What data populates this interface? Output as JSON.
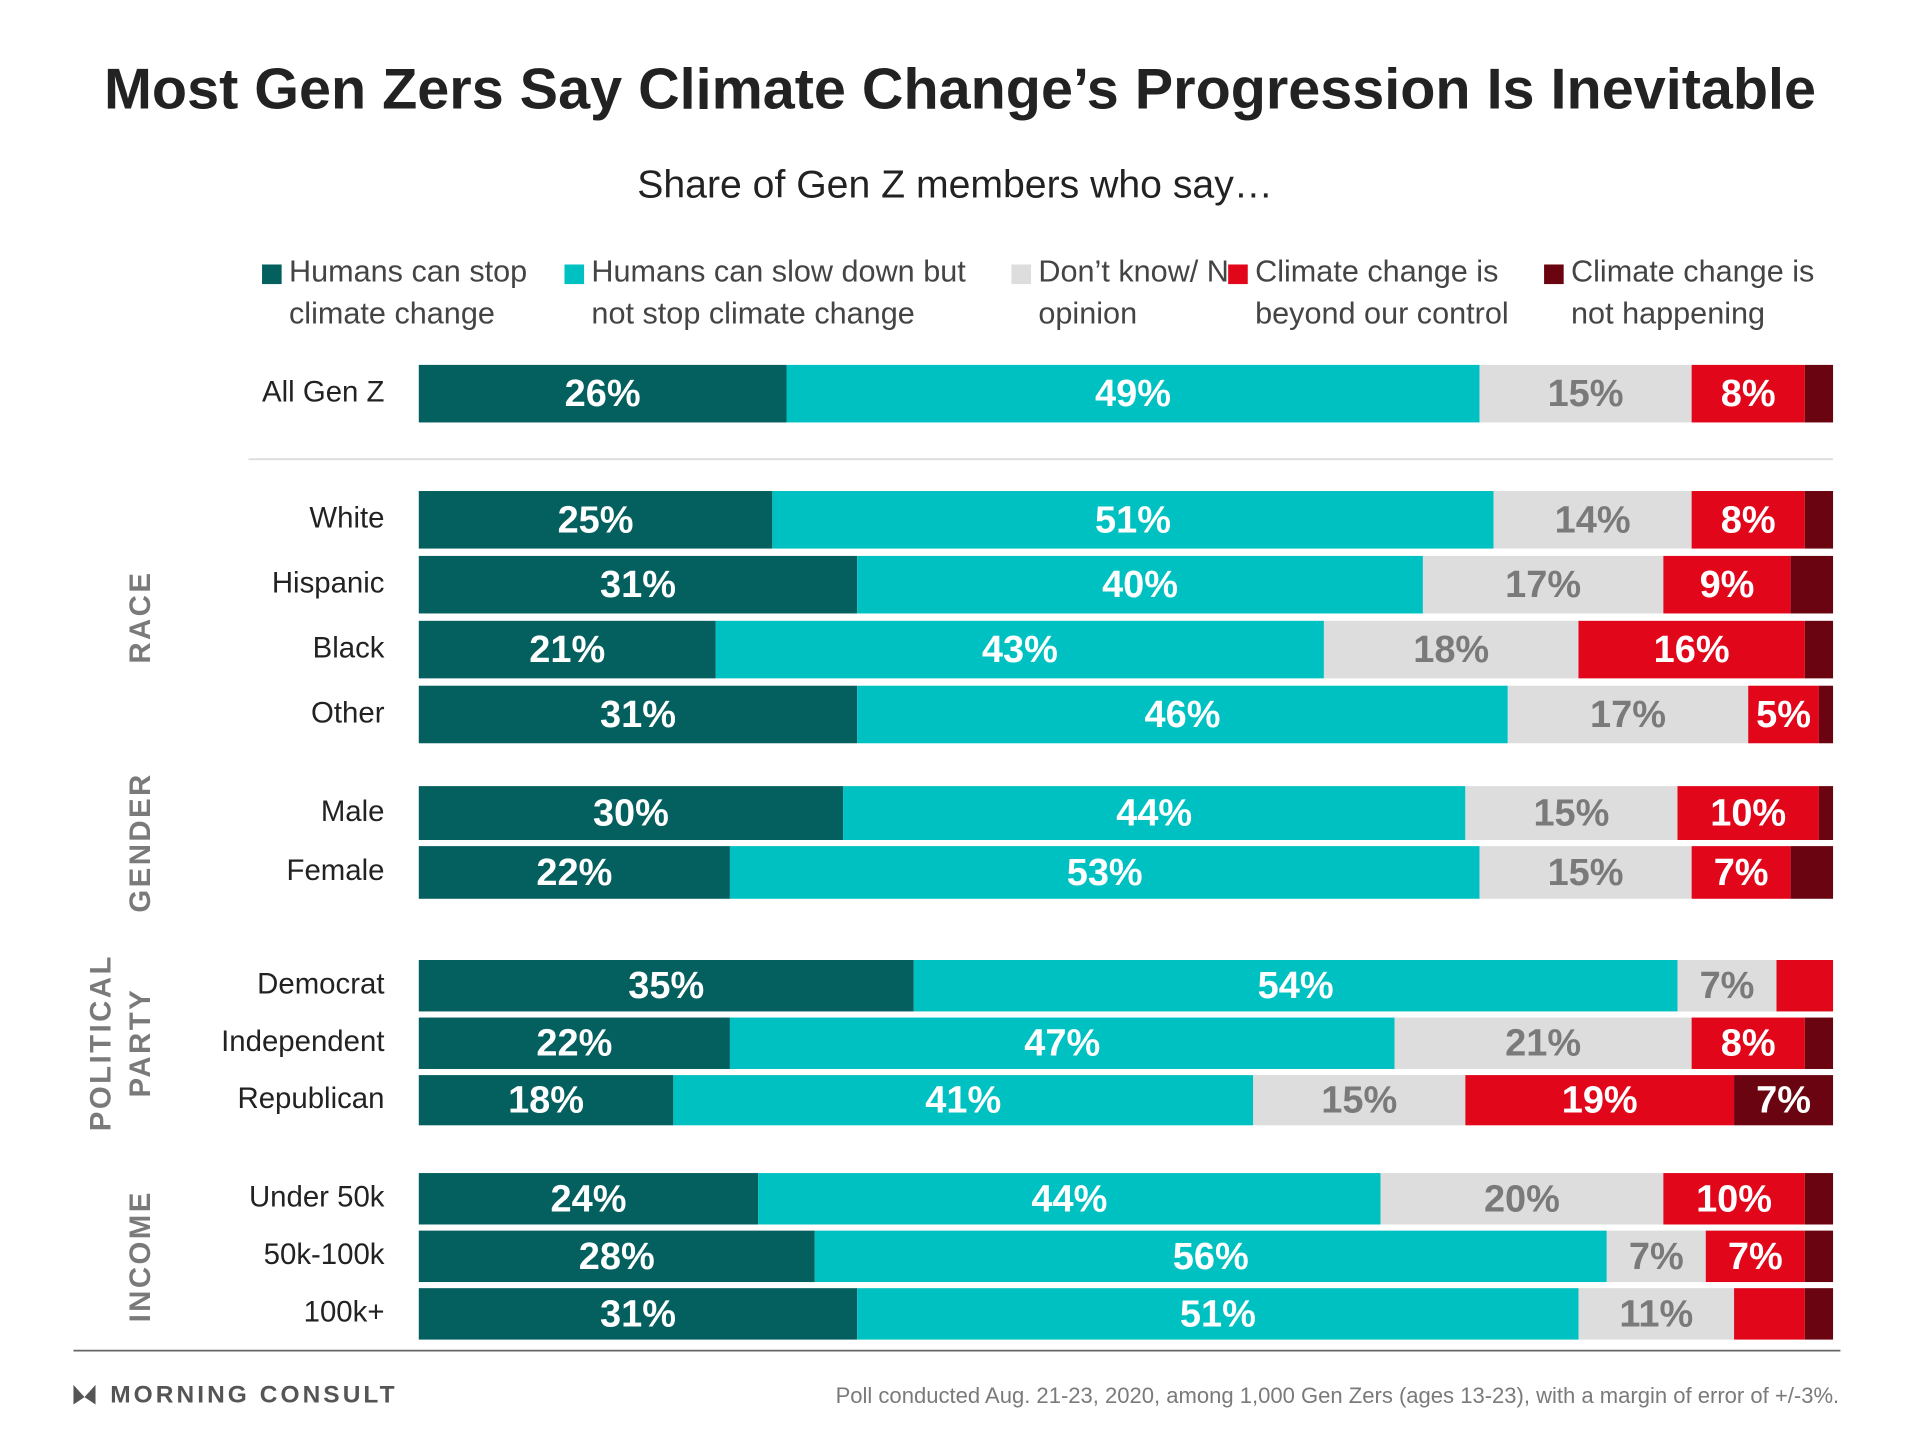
{
  "chart_data": {
    "type": "stacked-bar-horizontal",
    "title": "Most Gen Zers Say Climate Change’s Progression Is Inevitable",
    "subtitle": "Share of Gen Z members who say…",
    "categories": [
      "All Gen Z",
      "White",
      "Hispanic",
      "Black",
      "Other",
      "Male",
      "Female",
      "Democrat",
      "Independent",
      "Republican",
      "Under 50k",
      "50k-100k",
      "100k+"
    ],
    "groups": [
      {
        "label": [
          "RACE"
        ],
        "rows": [
          1,
          2,
          3,
          4
        ]
      },
      {
        "label": [
          "GENDER"
        ],
        "rows": [
          5,
          6
        ]
      },
      {
        "label": [
          "POLITICAL",
          "PARTY"
        ],
        "rows": [
          7,
          8,
          9
        ]
      },
      {
        "label": [
          "INCOME"
        ],
        "rows": [
          10,
          11,
          12
        ]
      }
    ],
    "xlim": [
      0,
      100
    ],
    "series": [
      {
        "name": "Humans can stop climate change",
        "color": "#045f5f",
        "label_color": "#ffffff",
        "values": [
          26,
          25,
          31,
          21,
          31,
          30,
          22,
          35,
          22,
          18,
          24,
          28,
          31
        ],
        "value_labels": [
          "26%",
          "25%",
          "31%",
          "21%",
          "31%",
          "30%",
          "22%",
          "35%",
          "22%",
          "18%",
          "24%",
          "28%",
          "31%"
        ]
      },
      {
        "name": "Humans can slow down but not stop climate change",
        "color": "#00c1c1",
        "label_color": "#ffffff",
        "values": [
          49,
          51,
          40,
          43,
          46,
          44,
          53,
          54,
          47,
          41,
          44,
          56,
          51
        ],
        "value_labels": [
          "49%",
          "51%",
          "40%",
          "43%",
          "46%",
          "44%",
          "53%",
          "54%",
          "47%",
          "41%",
          "44%",
          "56%",
          "51%"
        ]
      },
      {
        "name": "Don’t know/ No opinion",
        "color": "#dddddd",
        "label_color": "#7a7a7a",
        "values": [
          15,
          14,
          17,
          18,
          17,
          15,
          15,
          7,
          21,
          15,
          20,
          7,
          11
        ],
        "value_labels": [
          "15%",
          "14%",
          "17%",
          "18%",
          "17%",
          "15%",
          "15%",
          "7%",
          "21%",
          "15%",
          "20%",
          "7%",
          "11%"
        ]
      },
      {
        "name": "Climate change is beyond our control",
        "color": "#e2061b",
        "label_color": "#ffffff",
        "values": [
          8,
          8,
          9,
          16,
          5,
          10,
          7,
          4,
          8,
          19,
          10,
          7,
          5
        ],
        "value_labels": [
          "8%",
          "8%",
          "9%",
          "16%",
          "5%",
          "10%",
          "7%",
          null,
          "8%",
          "19%",
          "10%",
          "7%",
          null
        ]
      },
      {
        "name": "Climate change is not happening",
        "color": "#6a0410",
        "label_color": "#ffffff",
        "values": [
          2,
          2,
          3,
          2,
          1,
          1,
          3,
          0,
          2,
          7,
          2,
          2,
          2
        ],
        "value_labels": [
          null,
          null,
          null,
          null,
          null,
          null,
          null,
          null,
          null,
          "7%",
          null,
          null,
          null
        ]
      }
    ],
    "brand": "MORNING CONSULT",
    "note": "Poll conducted Aug. 21-23, 2020, among 1,000 Gen Zers (ages 13-23), with a margin of error of +/-3%."
  }
}
